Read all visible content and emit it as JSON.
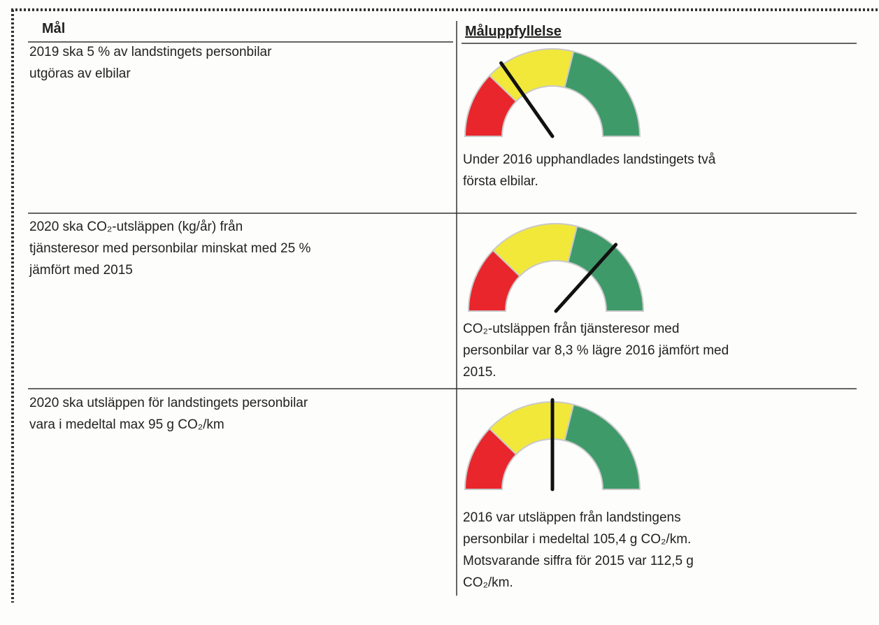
{
  "table": {
    "header": [
      "Mål",
      "Måluppfyllelse"
    ],
    "rows": [
      {
        "goal": [
          "2019 ska 5 % av landstingets personbilar",
          "utgöras av elbilar"
        ],
        "result": [
          "Under 2016 upphandlades landstingets två",
          "första elbilar."
        ]
      },
      {
        "goal": [
          "2020 ska CO₂-utsläppen (kg/år) från",
          "tjänsteresor med personbilar minskat med 25 %",
          "jämfört med 2015"
        ],
        "result": [
          "CO₂-utsläppen från tjänsteresor med",
          "personbilar var 8,3 % lägre 2016 jämfört med",
          "2015."
        ]
      },
      {
        "goal": [
          "2020 ska utsläppen för landstingets personbilar",
          "vara i medeltal max 95 g CO₂/km"
        ],
        "result": [
          "2016 var utsläppen från landstingens",
          "personbilar i medeltal 105,4 g CO₂/km.",
          "Motsvarande siffra för 2015 var 112,5 g",
          "CO₂/km."
        ]
      }
    ]
  }
}
